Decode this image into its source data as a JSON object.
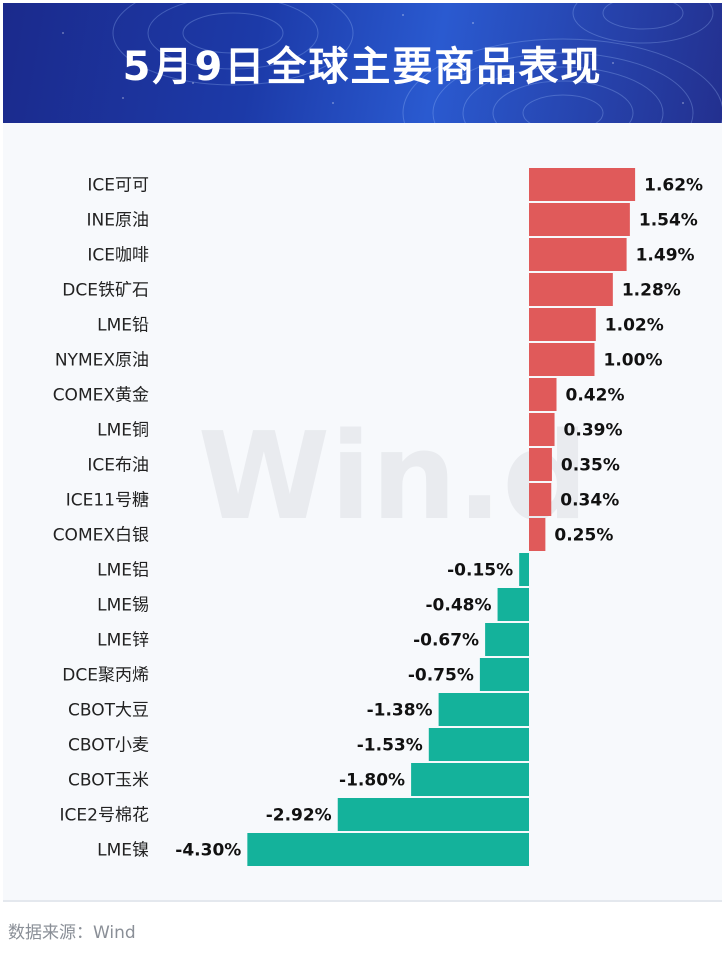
{
  "header": {
    "title": "5月9日全球主要商品表现"
  },
  "source": "数据来源：Wind",
  "watermark": "Win.d",
  "colors": {
    "positive": "#e05a5a",
    "negative": "#14b29b",
    "header_bg": "#1c3aa8"
  },
  "chart_data": {
    "type": "bar",
    "orientation": "horizontal",
    "title": "5月9日全球主要商品表现",
    "unit": "%",
    "categories": [
      "ICE可可",
      "INE原油",
      "ICE咖啡",
      "DCE铁矿石",
      "LME铅",
      "NYMEX原油",
      "COMEX黄金",
      "LME铜",
      "ICE布油",
      "ICE11号糖",
      "COMEX白银",
      "LME铝",
      "LME锡",
      "LME锌",
      "DCE聚丙烯",
      "CBOT大豆",
      "CBOT小麦",
      "CBOT玉米",
      "ICE2号棉花",
      "LME镍"
    ],
    "values": [
      1.62,
      1.54,
      1.49,
      1.28,
      1.02,
      1.0,
      0.42,
      0.39,
      0.35,
      0.34,
      0.25,
      -0.15,
      -0.48,
      -0.67,
      -0.75,
      -1.38,
      -1.53,
      -1.8,
      -2.92,
      -4.3
    ],
    "labels": [
      "1.62%",
      "1.54%",
      "1.49%",
      "1.28%",
      "1.02%",
      "1.00%",
      "0.42%",
      "0.39%",
      "0.35%",
      "0.34%",
      "0.25%",
      "-0.15%",
      "-0.48%",
      "-0.67%",
      "-0.75%",
      "-1.38%",
      "-1.53%",
      "-1.80%",
      "-2.92%",
      "-4.30%"
    ]
  }
}
